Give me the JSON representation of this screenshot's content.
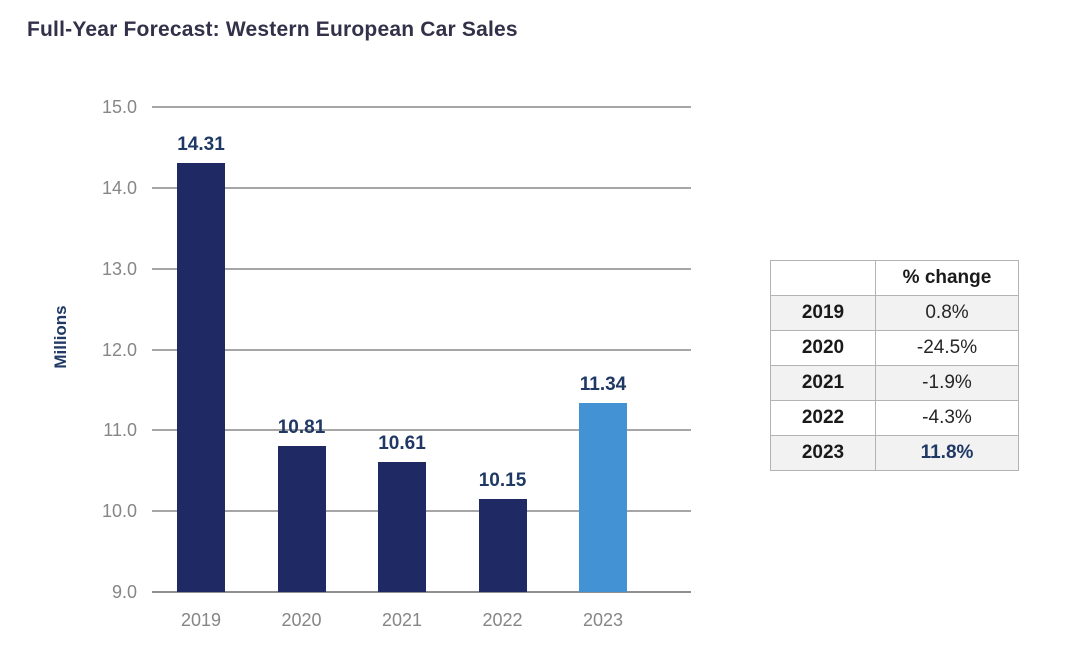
{
  "chart_data": {
    "type": "bar",
    "title": "Full-Year Forecast: Western European Car Sales",
    "categories": [
      "2019",
      "2020",
      "2021",
      "2022",
      "2023"
    ],
    "values": [
      14.31,
      10.81,
      10.61,
      10.15,
      11.34
    ],
    "data_labels": [
      "14.31",
      "10.81",
      "10.61",
      "10.15",
      "11.34"
    ],
    "xlabel": "",
    "ylabel": "Millions",
    "ylim": [
      9.0,
      15.0
    ],
    "ytick_labels": [
      "15.0",
      "14.0",
      "13.0",
      "12.0",
      "11.0",
      "10.0",
      "9.0"
    ],
    "grid": true,
    "legend": "none",
    "bar_colors": [
      "#1f2a64",
      "#1f2a64",
      "#1f2a64",
      "#1f2a64",
      "#4292d4"
    ],
    "colors": {
      "bar_navy": "#1f2a64",
      "bar_highlight_blue": "#4292d4",
      "data_label_navy": "#1f3864",
      "title_text": "#323149",
      "axis_text_gray": "#868686",
      "gridline_gray": "#a6a6a6",
      "baseline_gray": "#8f8f8f"
    }
  },
  "table": {
    "header": [
      "",
      "% change"
    ],
    "rows": [
      {
        "year": "2019",
        "change": "0.8%"
      },
      {
        "year": "2020",
        "change": "-24.5%"
      },
      {
        "year": "2021",
        "change": "-1.9%"
      },
      {
        "year": "2022",
        "change": "-4.3%"
      },
      {
        "year": "2023",
        "change": "11.8%"
      }
    ],
    "band_color": "#f2f2f2",
    "border_color": "#b3b3b3"
  }
}
